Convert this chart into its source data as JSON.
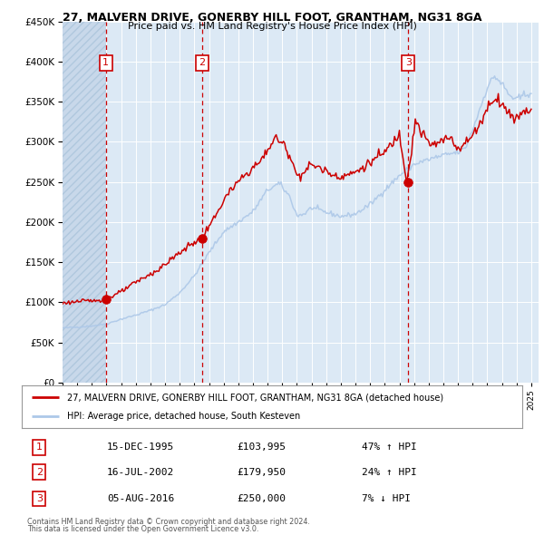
{
  "title": "27, MALVERN DRIVE, GONERBY HILL FOOT, GRANTHAM, NG31 8GA",
  "subtitle": "Price paid vs. HM Land Registry's House Price Index (HPI)",
  "legend_line1": "27, MALVERN DRIVE, GONERBY HILL FOOT, GRANTHAM, NG31 8GA (detached house)",
  "legend_line2": "HPI: Average price, detached house, South Kesteven",
  "transactions": [
    {
      "num": 1,
      "date": "15-DEC-1995",
      "price": 103995,
      "pct": "47%",
      "dir": "↑",
      "year": 1995.96
    },
    {
      "num": 2,
      "date": "16-JUL-2002",
      "price": 179950,
      "pct": "24%",
      "dir": "↑",
      "year": 2002.54
    },
    {
      "num": 3,
      "date": "05-AUG-2016",
      "price": 250000,
      "pct": "7%",
      "dir": "↓",
      "year": 2016.6
    }
  ],
  "sale_prices": [
    103995,
    179950,
    250000
  ],
  "footnote1": "Contains HM Land Registry data © Crown copyright and database right 2024.",
  "footnote2": "This data is licensed under the Open Government Licence v3.0.",
  "hpi_color": "#adc8e8",
  "price_color": "#cc0000",
  "dot_color": "#cc0000",
  "vline_color": "#cc0000",
  "plot_bg_color": "#dce9f5",
  "hatch_bg_color": "#c8d8ea",
  "ylim": [
    0,
    450000
  ],
  "yticks": [
    0,
    50000,
    100000,
    150000,
    200000,
    250000,
    300000,
    350000,
    400000,
    450000
  ],
  "xlim_start": 1993.0,
  "xlim_end": 2025.5,
  "first_sale_year": 1995.96
}
